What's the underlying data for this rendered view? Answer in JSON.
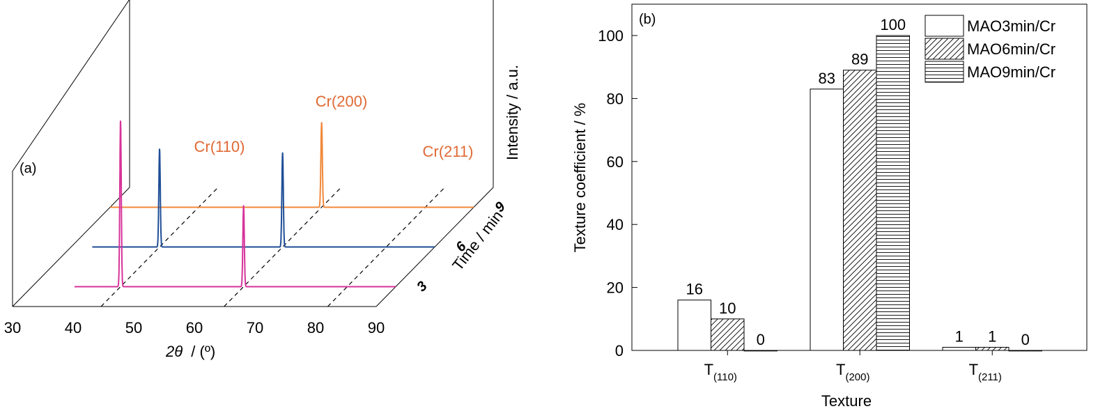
{
  "chart_data": [
    {
      "panel": "(a)",
      "type": "line",
      "subtype": "xrd-waterfall-3d",
      "xlabel_symbol": "2θ",
      "xlabel_unit": "/ (º)",
      "ylabel": "Intensity / a.u.",
      "zlabel": "Time / min",
      "xlim": [
        30,
        90
      ],
      "x_ticks": [
        "30",
        "40",
        "50",
        "60",
        "70",
        "80",
        "90"
      ],
      "z_ticks": [
        "3",
        "6",
        "9"
      ],
      "grid": false,
      "peak_labels": [
        {
          "text": "Cr(110)",
          "x": 44.6
        },
        {
          "text": "Cr(200)",
          "x": 64.9
        },
        {
          "text": "Cr(211)",
          "x": 82.0
        }
      ],
      "series": [
        {
          "name": "3",
          "color": "#d6339a",
          "peaks": [
            {
              "x": 44.6,
              "height": 0.88
            },
            {
              "x": 64.9,
              "height": 0.43
            },
            {
              "x": 82.0,
              "height": 0.0
            }
          ]
        },
        {
          "name": "6",
          "color": "#1f4e96",
          "peaks": [
            {
              "x": 44.6,
              "height": 0.52
            },
            {
              "x": 64.9,
              "height": 0.5
            },
            {
              "x": 82.0,
              "height": 0.0
            }
          ]
        },
        {
          "name": "9",
          "color": "#f0883a",
          "peaks": [
            {
              "x": 44.6,
              "height": 0.0
            },
            {
              "x": 64.9,
              "height": 0.45
            },
            {
              "x": 82.0,
              "height": 0.0
            }
          ]
        }
      ]
    },
    {
      "panel": "(b)",
      "type": "bar",
      "categories": [
        "T",
        "T",
        "T"
      ],
      "category_subscripts": [
        "(110)",
        "(200)",
        "(211)"
      ],
      "xlabel": "Texture",
      "ylabel": "Texture coefficient / %",
      "ylim": [
        0,
        110
      ],
      "y_ticks": [
        "0",
        "20",
        "40",
        "60",
        "80",
        "100"
      ],
      "grid": false,
      "legend_position": "top-right",
      "series": [
        {
          "name": "MAO3min/Cr",
          "pattern": "open",
          "values": [
            16,
            83,
            1
          ],
          "labels": [
            "16",
            "83",
            "1"
          ]
        },
        {
          "name": "MAO6min/Cr",
          "pattern": "diagonal",
          "values": [
            10,
            89,
            1
          ],
          "labels": [
            "10",
            "89",
            "1"
          ]
        },
        {
          "name": "MAO9min/Cr",
          "pattern": "horizontal",
          "values": [
            0,
            100,
            0
          ],
          "labels": [
            "0",
            "100",
            "0"
          ]
        }
      ]
    }
  ]
}
